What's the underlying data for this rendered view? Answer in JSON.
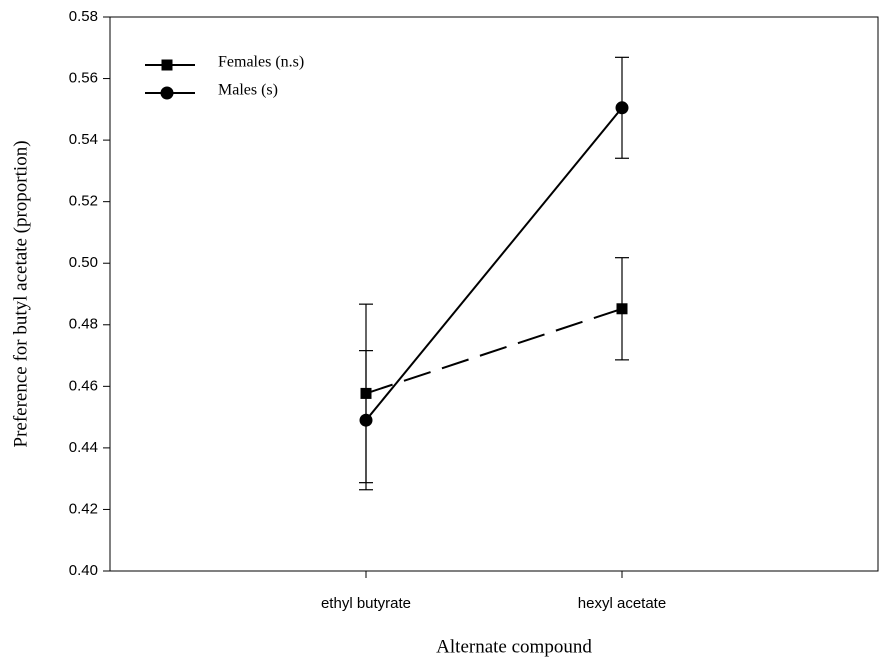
{
  "chart_data": {
    "type": "line",
    "x_label": "Alternate compound",
    "y_label": "Preference for butyl acetate (proportion)",
    "categories": [
      "ethyl butyrate",
      "hexyl acetate"
    ],
    "series": [
      {
        "name": "Females (n.s)",
        "color": "#000000",
        "marker": "square",
        "line_style": "dashed",
        "values": [
          0.4577,
          0.4852
        ],
        "errors": [
          0.029,
          0.0166
        ]
      },
      {
        "name": "Males (s)",
        "color": "#000000",
        "marker": "circle",
        "line_style": "solid",
        "values": [
          0.449,
          0.5505
        ],
        "errors": [
          0.0226,
          0.0164
        ]
      }
    ],
    "ylim": [
      0.4,
      0.58
    ],
    "yticks": [
      {
        "value": 0.4,
        "label": "0.40"
      },
      {
        "value": 0.42,
        "label": "0.42"
      },
      {
        "value": 0.44,
        "label": "0.44"
      },
      {
        "value": 0.46,
        "label": "0.46"
      },
      {
        "value": 0.48,
        "label": "0.48"
      },
      {
        "value": 0.5,
        "label": "0.50"
      },
      {
        "value": 0.52,
        "label": "0.52"
      },
      {
        "value": 0.54,
        "label": "0.54"
      },
      {
        "value": 0.56,
        "label": "0.56"
      },
      {
        "value": 0.58,
        "label": "0.58"
      }
    ],
    "grid": false,
    "legend": "upper-left"
  }
}
